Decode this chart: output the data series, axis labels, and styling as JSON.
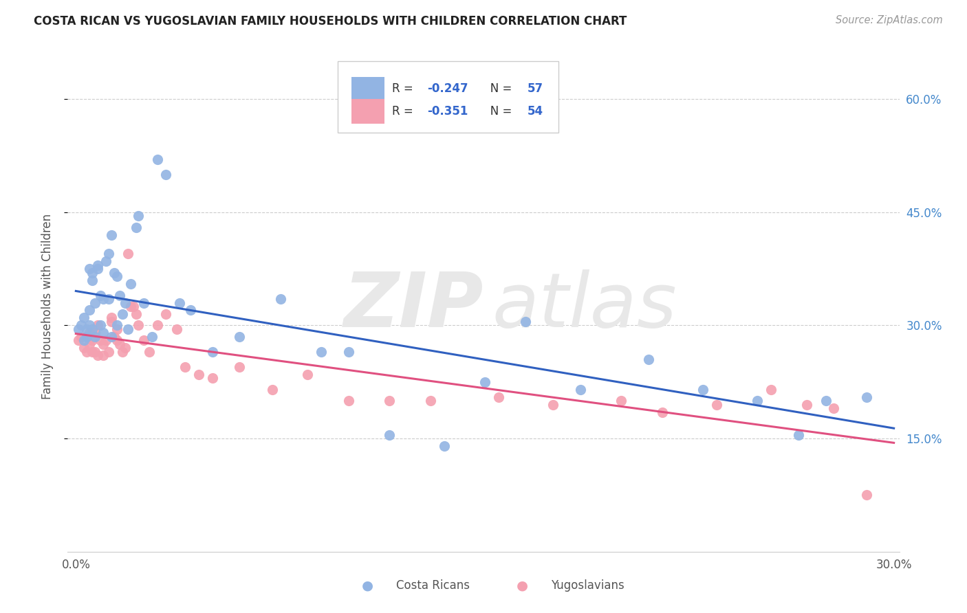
{
  "title": "COSTA RICAN VS YUGOSLAVIAN FAMILY HOUSEHOLDS WITH CHILDREN CORRELATION CHART",
  "source": "Source: ZipAtlas.com",
  "ylabel": "Family Households with Children",
  "blue_label": "Costa Ricans",
  "pink_label": "Yugoslavians",
  "blue_R": "-0.247",
  "blue_N": "57",
  "pink_R": "-0.351",
  "pink_N": "54",
  "blue_color": "#92b4e3",
  "pink_color": "#f4a0b0",
  "blue_line_color": "#3060c0",
  "pink_line_color": "#e05080",
  "xlim": [
    0.0,
    0.3
  ],
  "ylim": [
    0.0,
    0.65
  ],
  "yticks": [
    0.15,
    0.3,
    0.45,
    0.6
  ],
  "ytick_labels": [
    "15.0%",
    "30.0%",
    "45.0%",
    "60.0%"
  ],
  "blue_x": [
    0.001,
    0.002,
    0.003,
    0.003,
    0.004,
    0.004,
    0.005,
    0.005,
    0.005,
    0.006,
    0.006,
    0.006,
    0.007,
    0.007,
    0.008,
    0.008,
    0.009,
    0.009,
    0.01,
    0.01,
    0.011,
    0.012,
    0.012,
    0.013,
    0.013,
    0.014,
    0.015,
    0.015,
    0.016,
    0.017,
    0.018,
    0.019,
    0.02,
    0.022,
    0.023,
    0.025,
    0.028,
    0.03,
    0.033,
    0.038,
    0.042,
    0.05,
    0.06,
    0.075,
    0.09,
    0.1,
    0.115,
    0.135,
    0.15,
    0.165,
    0.185,
    0.21,
    0.23,
    0.25,
    0.265,
    0.275,
    0.29
  ],
  "blue_y": [
    0.295,
    0.3,
    0.28,
    0.31,
    0.295,
    0.285,
    0.32,
    0.375,
    0.3,
    0.37,
    0.36,
    0.295,
    0.33,
    0.285,
    0.38,
    0.375,
    0.34,
    0.3,
    0.335,
    0.29,
    0.385,
    0.395,
    0.335,
    0.285,
    0.42,
    0.37,
    0.365,
    0.3,
    0.34,
    0.315,
    0.33,
    0.295,
    0.355,
    0.43,
    0.445,
    0.33,
    0.285,
    0.52,
    0.5,
    0.33,
    0.32,
    0.265,
    0.285,
    0.335,
    0.265,
    0.265,
    0.155,
    0.14,
    0.225,
    0.305,
    0.215,
    0.255,
    0.215,
    0.2,
    0.155,
    0.2,
    0.205
  ],
  "pink_x": [
    0.001,
    0.002,
    0.003,
    0.004,
    0.004,
    0.005,
    0.005,
    0.006,
    0.006,
    0.007,
    0.007,
    0.008,
    0.008,
    0.009,
    0.01,
    0.01,
    0.011,
    0.012,
    0.013,
    0.013,
    0.014,
    0.015,
    0.015,
    0.016,
    0.017,
    0.018,
    0.019,
    0.02,
    0.021,
    0.022,
    0.023,
    0.025,
    0.027,
    0.03,
    0.033,
    0.037,
    0.04,
    0.045,
    0.05,
    0.06,
    0.072,
    0.085,
    0.1,
    0.115,
    0.13,
    0.155,
    0.175,
    0.2,
    0.215,
    0.235,
    0.255,
    0.268,
    0.278,
    0.29
  ],
  "pink_y": [
    0.28,
    0.285,
    0.27,
    0.285,
    0.265,
    0.29,
    0.275,
    0.265,
    0.28,
    0.29,
    0.265,
    0.3,
    0.26,
    0.28,
    0.275,
    0.26,
    0.28,
    0.265,
    0.31,
    0.305,
    0.285,
    0.295,
    0.28,
    0.275,
    0.265,
    0.27,
    0.395,
    0.325,
    0.325,
    0.315,
    0.3,
    0.28,
    0.265,
    0.3,
    0.315,
    0.295,
    0.245,
    0.235,
    0.23,
    0.245,
    0.215,
    0.235,
    0.2,
    0.2,
    0.2,
    0.205,
    0.195,
    0.2,
    0.185,
    0.195,
    0.215,
    0.195,
    0.19,
    0.075
  ]
}
